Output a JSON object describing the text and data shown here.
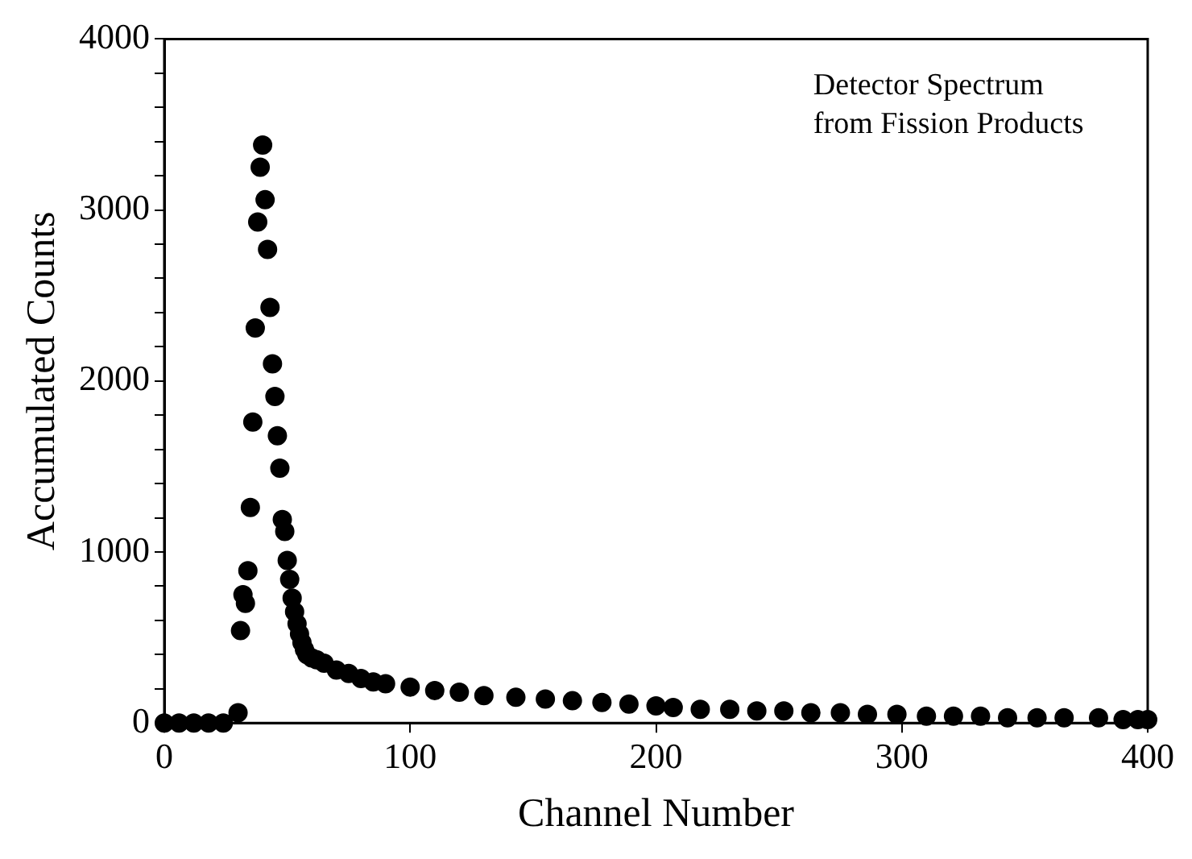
{
  "chart_data": {
    "type": "scatter",
    "xlabel": "Channel Number",
    "ylabel": "Accumulated Counts",
    "annotations": [
      "Detector Spectrum\nfrom Fission Products"
    ],
    "xlim": [
      0,
      400
    ],
    "xticks": [
      0,
      100,
      200,
      300,
      400
    ],
    "ylim": [
      0,
      4000
    ],
    "yticks": [
      0,
      {
        "value": 200,
        "label": null
      },
      {
        "value": 400,
        "label": null
      },
      {
        "value": 600,
        "label": null
      },
      {
        "value": 800,
        "label": null
      },
      1000,
      {
        "value": 1200,
        "label": null
      },
      {
        "value": 1400,
        "label": null
      },
      {
        "value": 1600,
        "label": null
      },
      {
        "value": 1800,
        "label": null
      },
      2000,
      {
        "value": 2200,
        "label": null
      },
      {
        "value": 2400,
        "label": null
      },
      {
        "value": 2600,
        "label": null
      },
      {
        "value": 2800,
        "label": null
      },
      3000,
      {
        "value": 3200,
        "label": null
      },
      {
        "value": 3400,
        "label": null
      },
      {
        "value": 3600,
        "label": null
      },
      {
        "value": 3800,
        "label": null
      },
      4000
    ],
    "marker": "circle",
    "grid": false,
    "legend": false,
    "series": [
      {
        "color": "#000000",
        "x": [
          0,
          6,
          12,
          18,
          24,
          30,
          31,
          32,
          33,
          34,
          35,
          36,
          37,
          38,
          39,
          40,
          41,
          42,
          43,
          44,
          45,
          46,
          47,
          48,
          49,
          50,
          51,
          52,
          53,
          54,
          55,
          56,
          57,
          58,
          60,
          62,
          65,
          70,
          75,
          80,
          85,
          90,
          100,
          110,
          120,
          130,
          143,
          155,
          166,
          178,
          189,
          200,
          207,
          218,
          230,
          241,
          252,
          263,
          275,
          286,
          298,
          310,
          321,
          332,
          343,
          355,
          366,
          380,
          390,
          396,
          400
        ],
        "values": [
          0,
          0,
          0,
          0,
          0,
          60,
          540,
          750,
          700,
          890,
          1260,
          1760,
          2310,
          2930,
          3250,
          3380,
          3060,
          2770,
          2430,
          2100,
          1910,
          1680,
          1490,
          1190,
          1120,
          950,
          840,
          730,
          650,
          580,
          520,
          470,
          430,
          400,
          380,
          370,
          350,
          310,
          290,
          260,
          240,
          230,
          210,
          190,
          180,
          160,
          150,
          140,
          130,
          120,
          110,
          100,
          90,
          80,
          80,
          70,
          70,
          60,
          60,
          50,
          50,
          40,
          40,
          40,
          30,
          30,
          30,
          30,
          20,
          20,
          20
        ]
      }
    ]
  }
}
